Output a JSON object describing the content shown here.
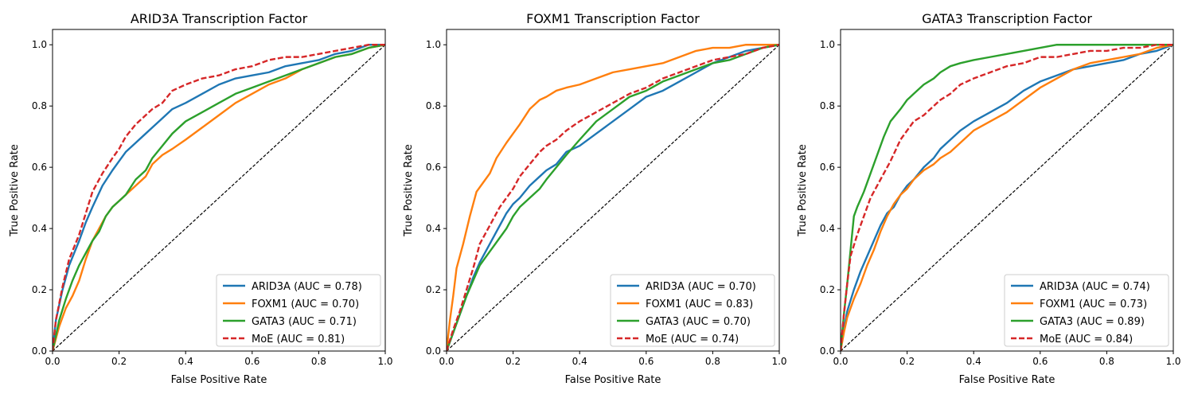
{
  "chart_data": [
    {
      "type": "line",
      "title": "ARID3A Transcription Factor",
      "xlabel": "False Positive Rate",
      "ylabel": "True Positive Rate",
      "xlim": [
        0.0,
        1.0
      ],
      "ylim": [
        0.0,
        1.05
      ],
      "xticks": [
        "0.0",
        "0.2",
        "0.4",
        "0.6",
        "0.8",
        "1.0"
      ],
      "yticks": [
        "0.0",
        "0.2",
        "0.4",
        "0.6",
        "0.8",
        "1.0"
      ],
      "legend_position": "lower-right",
      "diagonal": true,
      "series": [
        {
          "name": "ARID3A (AUC = 0.78)",
          "color": "#1f77b4",
          "dashed": false,
          "x": [
            0,
            0.01,
            0.03,
            0.05,
            0.08,
            0.1,
            0.12,
            0.15,
            0.18,
            0.2,
            0.22,
            0.25,
            0.28,
            0.3,
            0.33,
            0.36,
            0.4,
            0.45,
            0.5,
            0.55,
            0.6,
            0.65,
            0.7,
            0.75,
            0.8,
            0.85,
            0.9,
            0.95,
            1.0
          ],
          "y": [
            0,
            0.1,
            0.2,
            0.28,
            0.36,
            0.42,
            0.47,
            0.54,
            0.59,
            0.62,
            0.65,
            0.68,
            0.71,
            0.73,
            0.76,
            0.79,
            0.81,
            0.84,
            0.87,
            0.89,
            0.9,
            0.91,
            0.93,
            0.94,
            0.95,
            0.97,
            0.98,
            1.0,
            1.0
          ]
        },
        {
          "name": "FOXM1 (AUC = 0.70)",
          "color": "#ff7f0e",
          "dashed": false,
          "x": [
            0,
            0.02,
            0.04,
            0.06,
            0.08,
            0.1,
            0.12,
            0.14,
            0.16,
            0.18,
            0.2,
            0.22,
            0.25,
            0.28,
            0.3,
            0.33,
            0.36,
            0.4,
            0.45,
            0.5,
            0.55,
            0.6,
            0.65,
            0.7,
            0.75,
            0.8,
            0.85,
            0.9,
            0.95,
            1.0
          ],
          "y": [
            0,
            0.08,
            0.14,
            0.18,
            0.23,
            0.3,
            0.36,
            0.4,
            0.44,
            0.47,
            0.49,
            0.51,
            0.54,
            0.57,
            0.61,
            0.64,
            0.66,
            0.69,
            0.73,
            0.77,
            0.81,
            0.84,
            0.87,
            0.89,
            0.92,
            0.94,
            0.96,
            0.97,
            0.99,
            1.0
          ]
        },
        {
          "name": "GATA3 (AUC = 0.71)",
          "color": "#2ca02c",
          "dashed": false,
          "x": [
            0,
            0.02,
            0.04,
            0.06,
            0.08,
            0.1,
            0.12,
            0.14,
            0.16,
            0.18,
            0.2,
            0.22,
            0.25,
            0.28,
            0.3,
            0.33,
            0.36,
            0.4,
            0.45,
            0.5,
            0.55,
            0.6,
            0.65,
            0.7,
            0.75,
            0.8,
            0.85,
            0.9,
            0.95,
            1.0
          ],
          "y": [
            0,
            0.1,
            0.17,
            0.23,
            0.28,
            0.32,
            0.36,
            0.39,
            0.44,
            0.47,
            0.49,
            0.51,
            0.56,
            0.59,
            0.63,
            0.67,
            0.71,
            0.75,
            0.78,
            0.81,
            0.84,
            0.86,
            0.88,
            0.9,
            0.92,
            0.94,
            0.96,
            0.97,
            0.99,
            1.0
          ]
        },
        {
          "name": "MoE (AUC = 0.81)",
          "color": "#d62728",
          "dashed": true,
          "x": [
            0,
            0.01,
            0.03,
            0.05,
            0.08,
            0.1,
            0.12,
            0.15,
            0.18,
            0.2,
            0.22,
            0.25,
            0.28,
            0.3,
            0.33,
            0.36,
            0.4,
            0.45,
            0.5,
            0.55,
            0.6,
            0.65,
            0.7,
            0.75,
            0.8,
            0.85,
            0.9,
            0.95,
            1.0
          ],
          "y": [
            0,
            0.1,
            0.21,
            0.3,
            0.38,
            0.45,
            0.52,
            0.58,
            0.63,
            0.66,
            0.7,
            0.74,
            0.77,
            0.79,
            0.81,
            0.85,
            0.87,
            0.89,
            0.9,
            0.92,
            0.93,
            0.95,
            0.96,
            0.96,
            0.97,
            0.98,
            0.99,
            1.0,
            1.0
          ]
        }
      ]
    },
    {
      "type": "line",
      "title": "FOXM1 Transcription Factor",
      "xlabel": "False Positive Rate",
      "ylabel": "True Positive Rate",
      "xlim": [
        0.0,
        1.0
      ],
      "ylim": [
        0.0,
        1.05
      ],
      "xticks": [
        "0.0",
        "0.2",
        "0.4",
        "0.6",
        "0.8",
        "1.0"
      ],
      "yticks": [
        "0.0",
        "0.2",
        "0.4",
        "0.6",
        "0.8",
        "1.0"
      ],
      "legend_position": "lower-right",
      "diagonal": true,
      "series": [
        {
          "name": "ARID3A (AUC = 0.70)",
          "color": "#1f77b4",
          "dashed": false,
          "x": [
            0,
            0.02,
            0.04,
            0.06,
            0.08,
            0.1,
            0.12,
            0.14,
            0.16,
            0.18,
            0.2,
            0.22,
            0.25,
            0.28,
            0.3,
            0.33,
            0.36,
            0.4,
            0.45,
            0.5,
            0.55,
            0.6,
            0.65,
            0.7,
            0.75,
            0.8,
            0.85,
            0.9,
            0.95,
            1.0
          ],
          "y": [
            0,
            0.06,
            0.12,
            0.18,
            0.24,
            0.29,
            0.33,
            0.37,
            0.41,
            0.45,
            0.48,
            0.5,
            0.54,
            0.57,
            0.59,
            0.61,
            0.65,
            0.67,
            0.71,
            0.75,
            0.79,
            0.83,
            0.85,
            0.88,
            0.91,
            0.94,
            0.96,
            0.98,
            0.99,
            1.0
          ]
        },
        {
          "name": "FOXM1 (AUC = 0.83)",
          "color": "#ff7f0e",
          "dashed": false,
          "x": [
            0,
            0.01,
            0.02,
            0.03,
            0.05,
            0.07,
            0.09,
            0.11,
            0.13,
            0.15,
            0.18,
            0.2,
            0.22,
            0.25,
            0.28,
            0.3,
            0.33,
            0.36,
            0.4,
            0.45,
            0.5,
            0.55,
            0.6,
            0.65,
            0.7,
            0.75,
            0.8,
            0.85,
            0.9,
            0.95,
            1.0
          ],
          "y": [
            0,
            0.1,
            0.18,
            0.27,
            0.35,
            0.44,
            0.52,
            0.55,
            0.58,
            0.63,
            0.68,
            0.71,
            0.74,
            0.79,
            0.82,
            0.83,
            0.85,
            0.86,
            0.87,
            0.89,
            0.91,
            0.92,
            0.93,
            0.94,
            0.96,
            0.98,
            0.99,
            0.99,
            1.0,
            1.0,
            1.0
          ]
        },
        {
          "name": "GATA3 (AUC = 0.70)",
          "color": "#2ca02c",
          "dashed": false,
          "x": [
            0,
            0.02,
            0.04,
            0.06,
            0.08,
            0.1,
            0.12,
            0.14,
            0.16,
            0.18,
            0.2,
            0.22,
            0.25,
            0.28,
            0.3,
            0.33,
            0.36,
            0.4,
            0.45,
            0.5,
            0.55,
            0.6,
            0.65,
            0.7,
            0.75,
            0.8,
            0.85,
            0.9,
            0.95,
            1.0
          ],
          "y": [
            0,
            0.06,
            0.12,
            0.18,
            0.23,
            0.28,
            0.31,
            0.34,
            0.37,
            0.4,
            0.44,
            0.47,
            0.5,
            0.53,
            0.56,
            0.6,
            0.64,
            0.69,
            0.75,
            0.79,
            0.83,
            0.85,
            0.88,
            0.9,
            0.92,
            0.94,
            0.95,
            0.97,
            0.99,
            1.0
          ]
        },
        {
          "name": "MoE (AUC = 0.74)",
          "color": "#d62728",
          "dashed": true,
          "x": [
            0,
            0.02,
            0.04,
            0.06,
            0.08,
            0.1,
            0.12,
            0.14,
            0.16,
            0.18,
            0.2,
            0.22,
            0.25,
            0.28,
            0.3,
            0.33,
            0.36,
            0.4,
            0.45,
            0.5,
            0.55,
            0.6,
            0.65,
            0.7,
            0.75,
            0.8,
            0.85,
            0.9,
            0.95,
            1.0
          ],
          "y": [
            0,
            0.07,
            0.13,
            0.2,
            0.27,
            0.35,
            0.39,
            0.43,
            0.47,
            0.5,
            0.53,
            0.57,
            0.61,
            0.65,
            0.67,
            0.69,
            0.72,
            0.75,
            0.78,
            0.81,
            0.84,
            0.86,
            0.89,
            0.91,
            0.93,
            0.95,
            0.96,
            0.97,
            0.99,
            1.0
          ]
        }
      ]
    },
    {
      "type": "line",
      "title": "GATA3 Transcription Factor",
      "xlabel": "False Positive Rate",
      "ylabel": "True Positive Rate",
      "xlim": [
        0.0,
        1.0
      ],
      "ylim": [
        0.0,
        1.05
      ],
      "xticks": [
        "0.0",
        "0.2",
        "0.4",
        "0.6",
        "0.8",
        "1.0"
      ],
      "yticks": [
        "0.0",
        "0.2",
        "0.4",
        "0.6",
        "0.8",
        "1.0"
      ],
      "legend_position": "lower-right",
      "diagonal": true,
      "series": [
        {
          "name": "ARID3A (AUC = 0.74)",
          "color": "#1f77b4",
          "dashed": false,
          "x": [
            0,
            0.01,
            0.02,
            0.04,
            0.06,
            0.08,
            0.1,
            0.12,
            0.14,
            0.16,
            0.18,
            0.2,
            0.22,
            0.25,
            0.28,
            0.3,
            0.33,
            0.36,
            0.4,
            0.45,
            0.5,
            0.55,
            0.6,
            0.65,
            0.7,
            0.75,
            0.8,
            0.85,
            0.9,
            0.95,
            1.0
          ],
          "y": [
            0,
            0.07,
            0.13,
            0.2,
            0.26,
            0.31,
            0.36,
            0.41,
            0.45,
            0.47,
            0.51,
            0.54,
            0.56,
            0.6,
            0.63,
            0.66,
            0.69,
            0.72,
            0.75,
            0.78,
            0.81,
            0.85,
            0.88,
            0.9,
            0.92,
            0.93,
            0.94,
            0.95,
            0.97,
            0.98,
            1.0
          ]
        },
        {
          "name": "FOXM1 (AUC = 0.73)",
          "color": "#ff7f0e",
          "dashed": false,
          "x": [
            0,
            0.01,
            0.02,
            0.04,
            0.06,
            0.08,
            0.1,
            0.12,
            0.14,
            0.16,
            0.18,
            0.2,
            0.22,
            0.25,
            0.28,
            0.3,
            0.33,
            0.36,
            0.4,
            0.45,
            0.5,
            0.55,
            0.6,
            0.65,
            0.7,
            0.75,
            0.8,
            0.85,
            0.9,
            0.95,
            1.0
          ],
          "y": [
            0,
            0.06,
            0.11,
            0.17,
            0.22,
            0.28,
            0.33,
            0.39,
            0.44,
            0.48,
            0.51,
            0.53,
            0.56,
            0.59,
            0.61,
            0.63,
            0.65,
            0.68,
            0.72,
            0.75,
            0.78,
            0.82,
            0.86,
            0.89,
            0.92,
            0.94,
            0.95,
            0.96,
            0.97,
            0.99,
            1.0
          ]
        },
        {
          "name": "GATA3 (AUC = 0.89)",
          "color": "#2ca02c",
          "dashed": false,
          "x": [
            0,
            0.01,
            0.02,
            0.03,
            0.04,
            0.05,
            0.07,
            0.09,
            0.11,
            0.13,
            0.15,
            0.18,
            0.2,
            0.22,
            0.25,
            0.28,
            0.3,
            0.33,
            0.36,
            0.4,
            0.45,
            0.5,
            0.55,
            0.6,
            0.65,
            0.7,
            0.75,
            0.8,
            0.85,
            0.9,
            0.95,
            1.0
          ],
          "y": [
            0,
            0.12,
            0.22,
            0.33,
            0.44,
            0.47,
            0.52,
            0.58,
            0.64,
            0.7,
            0.75,
            0.79,
            0.82,
            0.84,
            0.87,
            0.89,
            0.91,
            0.93,
            0.94,
            0.95,
            0.96,
            0.97,
            0.98,
            0.99,
            1.0,
            1.0,
            1.0,
            1.0,
            1.0,
            1.0,
            1.0,
            1.0
          ]
        },
        {
          "name": "MoE (AUC = 0.84)",
          "color": "#d62728",
          "dashed": true,
          "x": [
            0,
            0.01,
            0.02,
            0.03,
            0.05,
            0.07,
            0.09,
            0.11,
            0.13,
            0.15,
            0.18,
            0.2,
            0.22,
            0.25,
            0.28,
            0.3,
            0.33,
            0.36,
            0.4,
            0.45,
            0.5,
            0.55,
            0.6,
            0.65,
            0.7,
            0.75,
            0.8,
            0.85,
            0.9,
            0.95,
            1.0
          ],
          "y": [
            0,
            0.12,
            0.22,
            0.31,
            0.38,
            0.44,
            0.5,
            0.54,
            0.58,
            0.62,
            0.69,
            0.72,
            0.75,
            0.77,
            0.8,
            0.82,
            0.84,
            0.87,
            0.89,
            0.91,
            0.93,
            0.94,
            0.96,
            0.96,
            0.97,
            0.98,
            0.98,
            0.99,
            0.99,
            1.0,
            1.0
          ]
        }
      ]
    }
  ]
}
